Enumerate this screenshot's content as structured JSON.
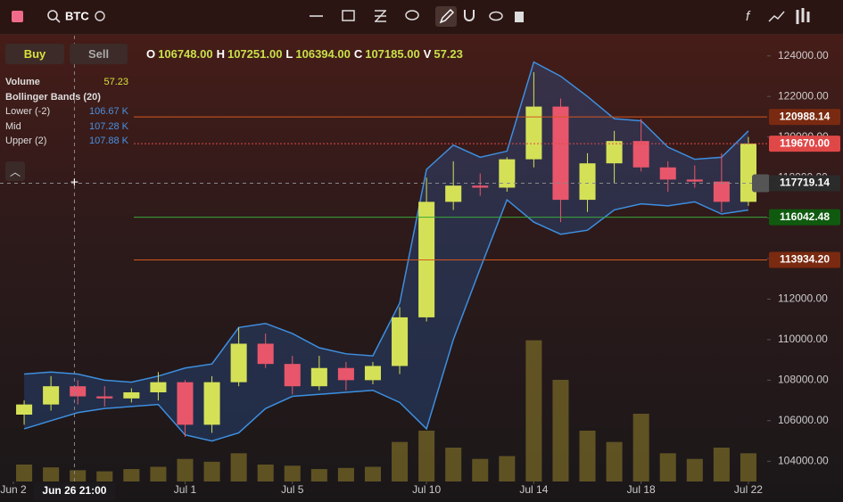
{
  "toolbar": {
    "symbol": "BTC"
  },
  "trade": {
    "buy": "Buy",
    "sell": "Sell"
  },
  "ohlc": [
    {
      "key": "O",
      "value": "106748.00"
    },
    {
      "key": "H",
      "value": "107251.00"
    },
    {
      "key": "L",
      "value": "106394.00"
    },
    {
      "key": "C",
      "value": "107185.00"
    },
    {
      "key": "V",
      "value": "57.23"
    }
  ],
  "legend": {
    "volume": {
      "name": "Volume",
      "value": "57.23"
    },
    "bollinger": "Bollinger Bands (20)",
    "rows": [
      {
        "name": "Lower (-2)",
        "value": "106.67 K"
      },
      {
        "name": "Mid",
        "value": "107.28 K"
      },
      {
        "name": "Upper (2)",
        "value": "107.88 K"
      }
    ]
  },
  "chart_data": {
    "type": "candlestick",
    "x": [
      -6,
      -5,
      -4,
      -3,
      -2,
      -1,
      0,
      1,
      2,
      3,
      4,
      5,
      6,
      7,
      8,
      9,
      10,
      11,
      12,
      13,
      14,
      15,
      16,
      17,
      18,
      19,
      20,
      21
    ],
    "open": [
      106300,
      106800,
      107700,
      107200,
      107100,
      107400,
      107900,
      105800,
      107900,
      109800,
      108800,
      107700,
      108600,
      108000,
      108700,
      111100,
      116800,
      117600,
      117500,
      118900,
      121500,
      116900,
      118700,
      119800,
      118500,
      117900,
      117800,
      116800
    ],
    "high": [
      107000,
      108200,
      108000,
      107700,
      107600,
      108400,
      108000,
      108200,
      110600,
      110300,
      109200,
      109200,
      108900,
      108900,
      111600,
      118000,
      118800,
      118200,
      119000,
      123200,
      121900,
      119200,
      120300,
      120900,
      118800,
      118600,
      119200,
      120000
    ],
    "low": [
      105800,
      106500,
      106800,
      106700,
      106900,
      107000,
      105200,
      105400,
      107700,
      108600,
      107300,
      107500,
      107500,
      107800,
      108300,
      110900,
      116400,
      117100,
      117300,
      118500,
      115800,
      116300,
      117700,
      118300,
      117300,
      117500,
      116300,
      116600
    ],
    "close": [
      106800,
      107700,
      107200,
      107100,
      107400,
      107900,
      105800,
      107900,
      109800,
      108800,
      107700,
      108600,
      108000,
      108700,
      111100,
      116800,
      117600,
      117500,
      118900,
      121500,
      116900,
      118700,
      119800,
      118500,
      117900,
      117800,
      116800,
      119670
    ],
    "volume": [
      300,
      250,
      200,
      180,
      220,
      260,
      400,
      350,
      500,
      300,
      280,
      220,
      240,
      260,
      700,
      900,
      600,
      400,
      450,
      2500,
      1800,
      900,
      700,
      1200,
      500,
      400,
      600,
      500
    ],
    "bollinger": {
      "upper": [
        108300,
        108400,
        108300,
        108000,
        107900,
        108200,
        108600,
        108800,
        110600,
        110800,
        110300,
        109600,
        109300,
        109200,
        111800,
        118400,
        119600,
        119000,
        119300,
        123700,
        123000,
        122000,
        120900,
        120800,
        119500,
        118900,
        119000,
        120300
      ],
      "lower": [
        105600,
        106000,
        106400,
        106600,
        106700,
        106800,
        105300,
        105000,
        105400,
        106600,
        107200,
        107300,
        107400,
        107500,
        106900,
        105600,
        110000,
        113500,
        116900,
        115800,
        115200,
        115400,
        116400,
        116700,
        116600,
        116800,
        116200,
        116400
      ],
      "color": "#3d8fe0"
    },
    "up_color": "#d4e157",
    "down_color": "#e8566b",
    "volume_color": "#8a7a2a",
    "ylim": [
      103000,
      125000
    ],
    "yticks": [
      {
        "value": 104000,
        "label": "104000.00"
      },
      {
        "value": 106000,
        "label": "106000.00"
      },
      {
        "value": 108000,
        "label": "108000.00"
      },
      {
        "value": 110000,
        "label": "110000.00"
      },
      {
        "value": 112000,
        "label": "112000.00"
      },
      {
        "value": 114000,
        "label": "114000.00"
      },
      {
        "value": 116000,
        "label": "116000.00"
      },
      {
        "value": 118000,
        "label": "118000.00"
      },
      {
        "value": 120000,
        "label": "120000.00"
      },
      {
        "value": 122000,
        "label": "122000.00"
      },
      {
        "value": 124000,
        "label": "124000.00"
      }
    ],
    "xlim": [
      -6.9,
      21.7
    ],
    "xticks": [
      {
        "value": -6.4,
        "label": "Jun 2"
      },
      {
        "value": 0,
        "label": "Jul 1"
      },
      {
        "value": 4,
        "label": "Jul 5"
      },
      {
        "value": 9,
        "label": "Jul 10"
      },
      {
        "value": 13,
        "label": "Jul 14"
      },
      {
        "value": 17,
        "label": "Jul 18"
      },
      {
        "value": 21,
        "label": "Jul 22"
      }
    ],
    "vlim": [
      0,
      3000
    ],
    "price_lines": [
      {
        "price": 120988.14,
        "color": "#d2581f",
        "box": "#7a2a10"
      },
      {
        "price": {
          "value": 119670,
          "label": "119670.00"
        },
        "color": "#e04848",
        "box": "#e04848"
      },
      {
        "price": 116042.48,
        "color": "#3aa83a",
        "box": "#0f5a0f"
      },
      {
        "price": {
          "value": 113934.2,
          "label": "113934.20"
        },
        "color": "#d2581f",
        "box": "#7a2a10"
      }
    ],
    "crosshair": {
      "x": {
        "value": -4.125,
        "label": "Jun 26 21:00"
      },
      "price": 117719.14
    }
  }
}
